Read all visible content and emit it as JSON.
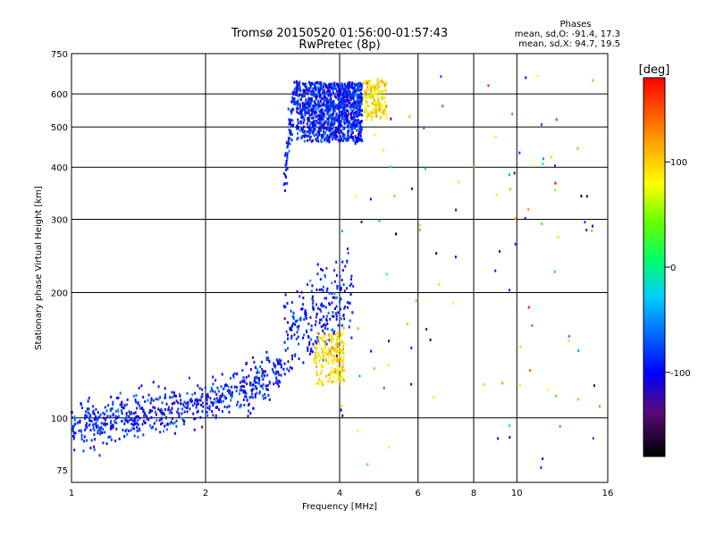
{
  "chart_data": {
    "type": "scatter",
    "title": "Tromsø 20150520 01:56:00-01:57:43",
    "subtitle": "RwPretec (8p)",
    "xlabel": "Frequency [MHz]",
    "ylabel": "Stationary phase Virtual Height [km]",
    "xscale": "log",
    "yscale": "log",
    "xlim": [
      1,
      16
    ],
    "ylim": [
      70,
      750
    ],
    "x_ticks": [
      1,
      2,
      4,
      6,
      8,
      10,
      16
    ],
    "x_tick_labels": [
      "1",
      "2",
      "4",
      "6",
      "8",
      "10",
      "16"
    ],
    "y_ticks": [
      75,
      100,
      200,
      300,
      400,
      500,
      600,
      750
    ],
    "y_tick_labels": [
      "75",
      "100",
      "200",
      "300",
      "400",
      "500",
      "600",
      "750"
    ],
    "grid": true,
    "phases_title": "Phases",
    "phases_lines": [
      "mean, sd,O: -91.4, 17.3",
      "mean, sd,X: 94.7, 19.5"
    ],
    "colorbar": {
      "label": "[deg]",
      "ticks": [
        100,
        0,
        -100
      ],
      "tick_labels": [
        "100",
        "0",
        "-100"
      ],
      "range": [
        -180,
        180
      ]
    },
    "series": [
      {
        "name": "O",
        "mean_phase": -91.4,
        "x": [
          1.05,
          1.2,
          1.4,
          1.6,
          1.8,
          2.0,
          2.2,
          2.5,
          2.8,
          3.0,
          3.1,
          3.2,
          3.3,
          3.5,
          3.8,
          4.0,
          4.3
        ],
        "y": [
          95,
          97,
          99,
          100,
          103,
          110,
          118,
          122,
          128,
          135,
          360,
          450,
          640,
          620,
          560,
          600,
          620
        ]
      },
      {
        "name": "X",
        "mean_phase": 94.7,
        "x": [
          3.6,
          3.8,
          4.0,
          4.5,
          4.8,
          5.0,
          5.5
        ],
        "y": [
          125,
          135,
          150,
          600,
          550,
          620,
          300
        ]
      }
    ]
  }
}
